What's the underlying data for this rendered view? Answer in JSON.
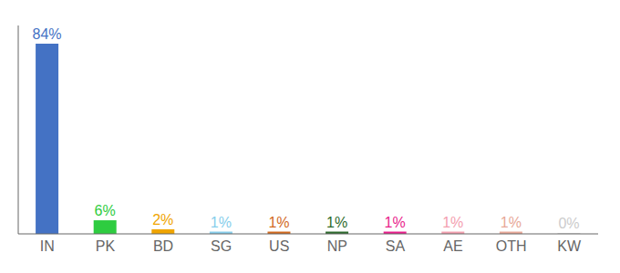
{
  "chart_data": {
    "type": "bar",
    "categories": [
      "IN",
      "PK",
      "BD",
      "SG",
      "US",
      "NP",
      "SA",
      "AE",
      "OTH",
      "KW"
    ],
    "values": [
      84,
      6,
      2,
      1,
      1,
      1,
      1,
      1,
      1,
      0.3
    ],
    "value_labels": [
      "84%",
      "6%",
      "2%",
      "1%",
      "1%",
      "1%",
      "1%",
      "1%",
      "1%",
      "0%"
    ],
    "colors": [
      "#4472c4",
      "#2ecc40",
      "#f0a500",
      "#87ceeb",
      "#d2691e",
      "#2d6a2d",
      "#e91e8c",
      "#f4a0b0",
      "#e8a898",
      "#cccccc"
    ],
    "ylim": [
      0,
      92
    ],
    "data_labels": true,
    "tick_labels": "x",
    "grid": false
  }
}
